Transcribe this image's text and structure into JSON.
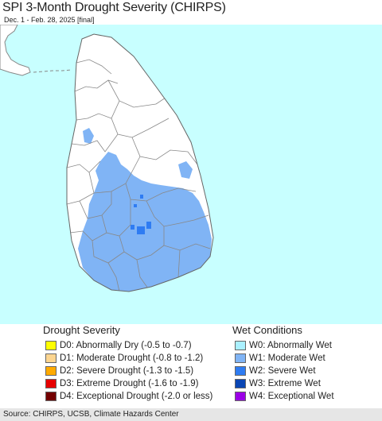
{
  "title": "SPI 3-Month Drought Severity (CHIRPS)",
  "subtitle": "Dec. 1 - Feb. 28, 2025 [final]",
  "colors": {
    "ocean": "#c8ffff",
    "land": "#ffffff",
    "boundary": "#888888",
    "w1_moderate_wet": "#80b4f5",
    "w2_severe_wet": "#2f7cf2"
  },
  "legend": {
    "drought": {
      "heading": "Drought Severity",
      "items": [
        {
          "label": "D0: Abnormally Dry (-0.5 to -0.7)",
          "color": "#ffff00"
        },
        {
          "label": "D1: Moderate Drought (-0.8 to -1.2)",
          "color": "#fcd590"
        },
        {
          "label": "D2: Severe Drought (-1.3 to -1.5)",
          "color": "#ffaa00"
        },
        {
          "label": "D3: Extreme Drought (-1.6 to -1.9)",
          "color": "#e60000"
        },
        {
          "label": "D4: Exceptional Drought (-2.0 or less)",
          "color": "#730000"
        }
      ]
    },
    "wet": {
      "heading": "Wet Conditions",
      "items": [
        {
          "label": "W0: Abnormally Wet",
          "color": "#aaf0ff"
        },
        {
          "label": "W1: Moderate Wet",
          "color": "#80b4f5"
        },
        {
          "label": "W2: Severe Wet",
          "color": "#2f7cf2"
        },
        {
          "label": "W3: Extreme Wet",
          "color": "#0a46b4"
        },
        {
          "label": "W4: Exceptional Wet",
          "color": "#9b00e6"
        }
      ]
    }
  },
  "footer": "Source: CHIRPS, UCSB, Climate Hazards Center"
}
